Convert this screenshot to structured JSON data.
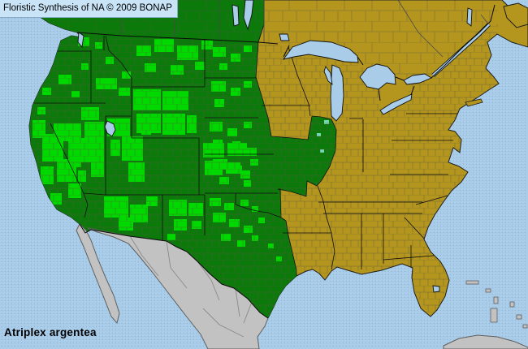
{
  "header": {
    "title": "Floristic Synthesis of NA © 2009 BONAP"
  },
  "footer": {
    "species_name": "Atriplex argentea"
  },
  "palette": {
    "ocean": "#A9CDE9",
    "state_present_green": "#0B7A0B",
    "county_present_green": "#00D900",
    "county_adventive_teal": "#6FD8B2",
    "state_absent_khaki": "#B4961E",
    "non_us_gray": "#C2C2C2",
    "label_bg": "#C9E4F7",
    "label_text": "#000000"
  },
  "map": {
    "present_county_markers": [
      [
        96,
        46,
        14,
        11
      ],
      [
        60,
        52,
        10,
        8
      ],
      [
        117,
        52,
        9,
        8
      ],
      [
        72,
        92,
        16,
        12
      ],
      [
        52,
        108,
        11,
        9
      ],
      [
        88,
        112,
        10,
        8
      ],
      [
        100,
        78,
        9,
        8
      ],
      [
        40,
        148,
        16,
        22
      ],
      [
        52,
        165,
        26,
        34
      ],
      [
        70,
        196,
        24,
        28
      ],
      [
        50,
        205,
        16,
        22
      ],
      [
        84,
        226,
        16,
        18
      ],
      [
        62,
        238,
        14,
        14
      ],
      [
        46,
        132,
        10,
        9
      ],
      [
        88,
        180,
        12,
        26
      ],
      [
        96,
        210,
        10,
        14
      ],
      [
        66,
        152,
        34,
        22
      ],
      [
        84,
        170,
        28,
        30
      ],
      [
        104,
        150,
        24,
        40
      ],
      [
        112,
        190,
        16,
        28
      ],
      [
        100,
        132,
        22,
        16
      ],
      [
        118,
        96,
        26,
        14
      ],
      [
        146,
        108,
        14,
        10
      ],
      [
        130,
        70,
        10,
        9
      ],
      [
        150,
        88,
        11,
        9
      ],
      [
        132,
        146,
        28,
        22
      ],
      [
        150,
        168,
        26,
        30
      ],
      [
        136,
        172,
        12,
        20
      ],
      [
        158,
        200,
        20,
        24
      ],
      [
        174,
        150,
        12,
        16
      ],
      [
        128,
        242,
        30,
        26
      ],
      [
        160,
        252,
        22,
        22
      ],
      [
        146,
        268,
        18,
        16
      ],
      [
        180,
        242,
        14,
        12
      ],
      [
        168,
        56,
        18,
        13
      ],
      [
        190,
        48,
        24,
        16
      ],
      [
        218,
        56,
        26,
        18
      ],
      [
        248,
        50,
        14,
        11
      ],
      [
        178,
        78,
        14,
        11
      ],
      [
        210,
        80,
        16,
        12
      ],
      [
        240,
        76,
        12,
        10
      ],
      [
        164,
        110,
        34,
        26
      ],
      [
        200,
        112,
        32,
        24
      ],
      [
        168,
        140,
        30,
        24
      ],
      [
        200,
        140,
        28,
        26
      ],
      [
        230,
        142,
        12,
        22
      ],
      [
        250,
        176,
        26,
        18
      ],
      [
        280,
        176,
        24,
        16
      ],
      [
        252,
        198,
        22,
        18
      ],
      [
        278,
        200,
        18,
        14
      ],
      [
        304,
        182,
        12,
        10
      ],
      [
        296,
        210,
        12,
        10
      ],
      [
        208,
        246,
        22,
        20
      ],
      [
        232,
        250,
        18,
        16
      ],
      [
        214,
        270,
        16,
        14
      ],
      [
        236,
        272,
        12,
        10
      ],
      [
        206,
        288,
        10,
        8
      ],
      [
        262,
        58,
        16,
        12
      ],
      [
        284,
        66,
        12,
        10
      ],
      [
        300,
        56,
        10,
        8
      ],
      [
        270,
        78,
        10,
        8
      ],
      [
        260,
        100,
        18,
        13
      ],
      [
        284,
        108,
        12,
        10
      ],
      [
        300,
        100,
        10,
        8
      ],
      [
        264,
        122,
        12,
        10
      ],
      [
        258,
        150,
        16,
        12
      ],
      [
        280,
        158,
        12,
        10
      ],
      [
        300,
        150,
        10,
        8
      ],
      [
        262,
        172,
        12,
        9
      ],
      [
        286,
        174,
        10,
        8
      ],
      [
        262,
        196,
        18,
        13
      ],
      [
        286,
        204,
        12,
        10
      ],
      [
        308,
        196,
        10,
        8
      ],
      [
        270,
        218,
        12,
        9
      ],
      [
        300,
        222,
        9,
        8
      ],
      [
        258,
        244,
        14,
        10
      ],
      [
        276,
        250,
        12,
        9
      ],
      [
        296,
        246,
        10,
        8
      ],
      [
        310,
        254,
        8,
        7
      ],
      [
        262,
        262,
        16,
        12
      ],
      [
        282,
        270,
        13,
        10
      ],
      [
        300,
        278,
        11,
        9
      ],
      [
        272,
        288,
        12,
        9
      ],
      [
        292,
        296,
        10,
        8
      ],
      [
        310,
        290,
        8,
        7
      ],
      [
        318,
        268,
        8,
        7
      ],
      [
        330,
        300,
        7,
        6
      ],
      [
        340,
        316,
        7,
        6
      ]
    ],
    "adventive_county_markers": [
      [
        399,
        148,
        6,
        5
      ],
      [
        390,
        164,
        5,
        4
      ],
      [
        394,
        184,
        5,
        4
      ]
    ]
  }
}
